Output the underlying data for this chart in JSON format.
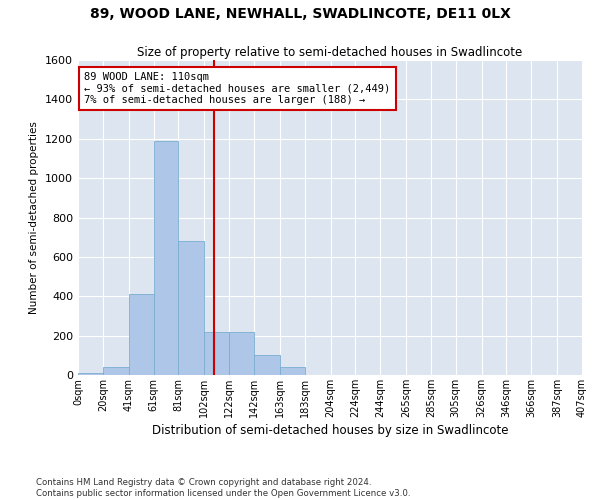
{
  "title": "89, WOOD LANE, NEWHALL, SWADLINCOTE, DE11 0LX",
  "subtitle": "Size of property relative to semi-detached houses in Swadlincote",
  "xlabel": "Distribution of semi-detached houses by size in Swadlincote",
  "ylabel": "Number of semi-detached properties",
  "bar_color": "#aec6e8",
  "bar_edge_color": "#7aaed0",
  "bg_color": "#dde6f0",
  "grid_color": "#ffffff",
  "annotation_text": "89 WOOD LANE: 110sqm\n← 93% of semi-detached houses are smaller (2,449)\n7% of semi-detached houses are larger (188) →",
  "vline_x": 110,
  "vline_color": "#cc0000",
  "annotation_box_color": "#ffffff",
  "annotation_box_edge_color": "#cc0000",
  "bin_edges": [
    0,
    20,
    41,
    61,
    81,
    102,
    122,
    142,
    163,
    183,
    204,
    224,
    244,
    265,
    285,
    305,
    326,
    346,
    366,
    387,
    407
  ],
  "bin_counts": [
    10,
    40,
    410,
    1190,
    680,
    220,
    220,
    100,
    40,
    0,
    0,
    0,
    0,
    0,
    0,
    0,
    0,
    0,
    0,
    0
  ],
  "ylim": [
    0,
    1600
  ],
  "yticks": [
    0,
    200,
    400,
    600,
    800,
    1000,
    1200,
    1400,
    1600
  ],
  "footnote": "Contains HM Land Registry data © Crown copyright and database right 2024.\nContains public sector information licensed under the Open Government Licence v3.0.",
  "tick_labels": [
    "0sqm",
    "20sqm",
    "41sqm",
    "61sqm",
    "81sqm",
    "102sqm",
    "122sqm",
    "142sqm",
    "163sqm",
    "183sqm",
    "204sqm",
    "224sqm",
    "244sqm",
    "265sqm",
    "285sqm",
    "305sqm",
    "326sqm",
    "346sqm",
    "366sqm",
    "387sqm",
    "407sqm"
  ]
}
